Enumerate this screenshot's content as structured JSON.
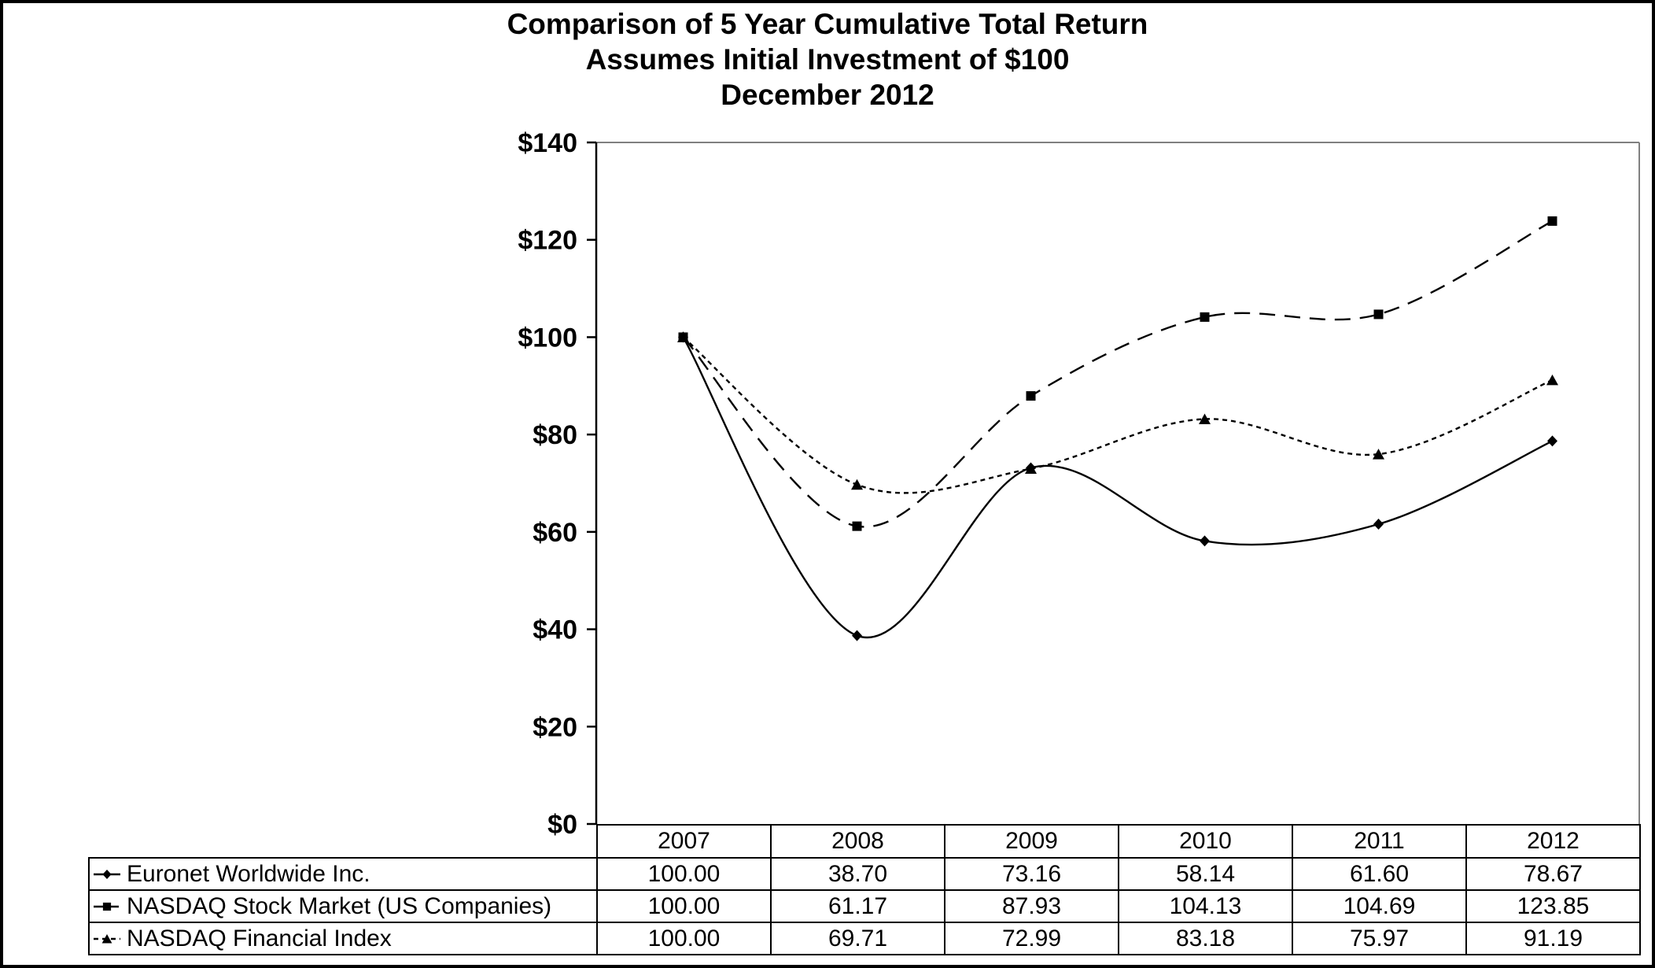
{
  "chart_data": {
    "type": "line",
    "title": "Comparison of 5 Year Cumulative Total Return",
    "subtitle": "Assumes Initial Investment of $100",
    "date_label": "December 2012",
    "categories": [
      "2007",
      "2008",
      "2009",
      "2010",
      "2011",
      "2012"
    ],
    "series": [
      {
        "name": "Euronet Worldwide Inc.",
        "marker": "diamond",
        "line_style": "solid",
        "values": [
          100.0,
          38.7,
          73.16,
          58.14,
          61.6,
          78.67
        ]
      },
      {
        "name": "NASDAQ Stock Market (US Companies)",
        "marker": "square",
        "line_style": "long-dash",
        "values": [
          100.0,
          61.17,
          87.93,
          104.13,
          104.69,
          123.85
        ]
      },
      {
        "name": "NASDAQ Financial Index",
        "marker": "triangle",
        "line_style": "short-dash",
        "values": [
          100.0,
          69.71,
          72.99,
          83.18,
          75.97,
          91.19
        ]
      }
    ],
    "y_ticks": [
      "$0",
      "$20",
      "$40",
      "$60",
      "$80",
      "$100",
      "$120",
      "$140"
    ],
    "ylim": [
      0,
      140
    ],
    "xlabel": "",
    "ylabel": "",
    "grid": false,
    "smooth": true,
    "legend_position": "table-rows-left",
    "value_decimals": 2,
    "colors": {
      "line": "#000000",
      "marker": "#000000",
      "axis": "#000000",
      "plot_border": "#808080",
      "text": "#000000",
      "background": "#ffffff"
    }
  }
}
